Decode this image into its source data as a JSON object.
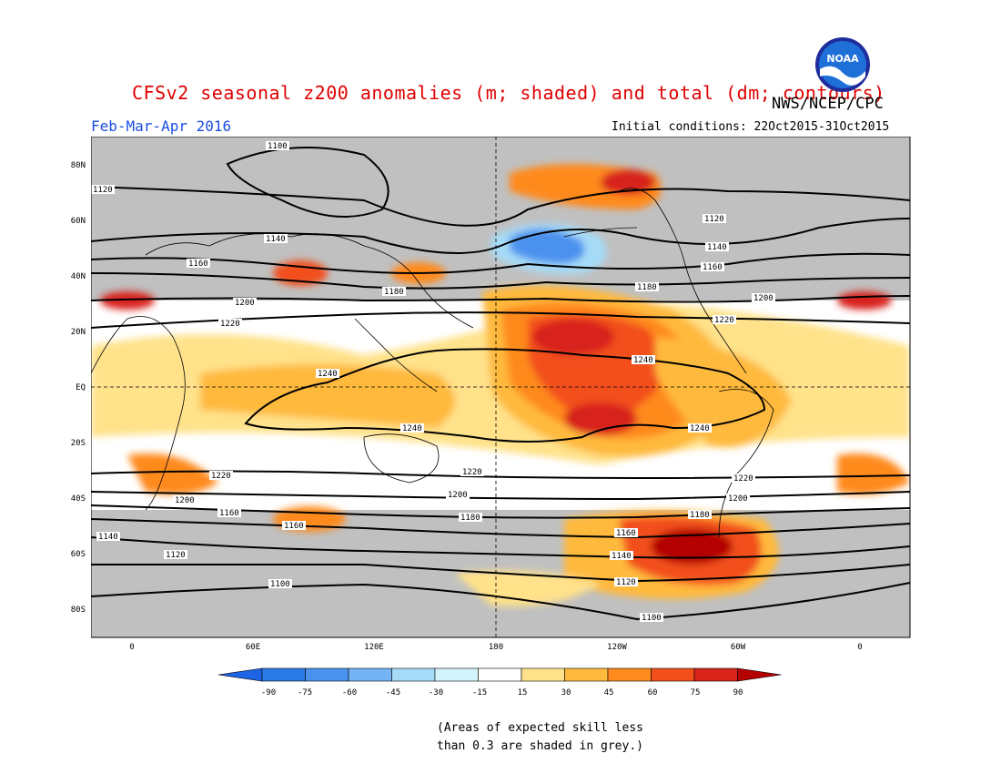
{
  "title": "CFSv2 seasonal z200 anomalies (m; shaded) and total (dm; contours)",
  "agency": "NWS/NCEP/CPC",
  "logo_text": "NOAA",
  "period": "Feb-Mar-Apr 2016",
  "initial_conditions": "Initial conditions: 22Oct2015-31Oct2015",
  "map": {
    "lat_labels": [
      "80N",
      "60N",
      "40N",
      "20N",
      "EQ",
      "20S",
      "40S",
      "60S",
      "80S"
    ],
    "lon_labels": [
      "0",
      "60E",
      "120E",
      "180",
      "120W",
      "60W",
      "0"
    ],
    "contour_labels": [
      "1100",
      "1120",
      "1140",
      "1160",
      "1180",
      "1200",
      "1220",
      "1240"
    ]
  },
  "colorbar": {
    "ticks": [
      "-90",
      "-75",
      "-60",
      "-45",
      "-30",
      "-15",
      "15",
      "30",
      "45",
      "60",
      "75",
      "90"
    ],
    "colors": [
      "#1e64e6",
      "#2a7ae8",
      "#4b92ee",
      "#74b4f4",
      "#a6dcf8",
      "#d3f4fa",
      "#ffffff",
      "#ffe28a",
      "#ffb93e",
      "#ff8a1e",
      "#f2501a",
      "#d8241a",
      "#b40000"
    ]
  },
  "note_line1": "(Areas of expected skill less",
  "note_line2": "than 0.3 are shaded in grey.)"
}
